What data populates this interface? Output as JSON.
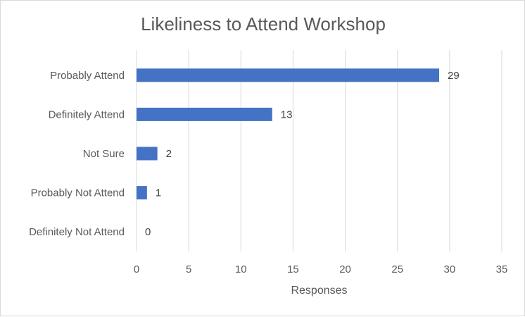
{
  "chart_data": {
    "type": "bar",
    "orientation": "horizontal",
    "title": "Likeliness to Attend Workshop",
    "xlabel": "Responses",
    "ylabel": "",
    "categories": [
      "Probably Attend",
      "Definitely Attend",
      "Not Sure",
      "Probably Not Attend",
      "Definitely Not Attend"
    ],
    "values": [
      29,
      13,
      2,
      1,
      0
    ],
    "xlim": [
      0,
      35
    ],
    "xticks": [
      0,
      5,
      10,
      15,
      20,
      25,
      30,
      35
    ],
    "grid": "vertical",
    "legend": "none",
    "data_labels": true,
    "bar_color": "#4472C4",
    "grid_color": "#d9d9d9"
  }
}
